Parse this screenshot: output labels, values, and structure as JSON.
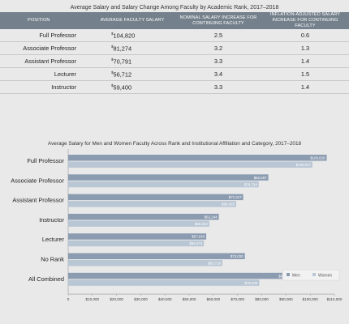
{
  "table": {
    "title": "Average Salary and Salary Change Among Faculty by Academic Rank, 2017–2018",
    "headers": [
      "POSITION",
      "AVERAGE FACULTY SALARY",
      "NOMINAL SALARY INCREASE FOR CONTINUING FACULTY",
      "INFLATION-ADJUSTED SALARY INCREASE FOR CONTINUING FACULTY"
    ],
    "rows": [
      {
        "position": "Full Professor",
        "salary": "104,820",
        "nominal": "2.5",
        "adjusted": "0.6"
      },
      {
        "position": "Associate Professor",
        "salary": "81,274",
        "nominal": "3.2",
        "adjusted": "1.3"
      },
      {
        "position": "Assistant Professor",
        "salary": "70,791",
        "nominal": "3.3",
        "adjusted": "1.4"
      },
      {
        "position": "Lecturer",
        "salary": "56,712",
        "nominal": "3.4",
        "adjusted": "1.5"
      },
      {
        "position": "Instructor",
        "salary": "59,400",
        "nominal": "3.3",
        "adjusted": "1.4"
      }
    ]
  },
  "chart_data": {
    "type": "bar",
    "orientation": "horizontal",
    "title": "Average Salary for Men and Women Faculty Across Rank and Institutional Affiliation and Category, 2017–2018",
    "categories": [
      "Full Professor",
      "Associate Professor",
      "Assistant Professor",
      "Instructor",
      "Lecturer",
      "No Rank",
      "All Combined"
    ],
    "series": [
      {
        "name": "Men",
        "color": "#8b9bb0",
        "values": [
          106820,
          82697,
          72317,
          62244,
          57043,
          73020,
          92930
        ],
        "labels": [
          "$106,820",
          "$82,697",
          "$72,317",
          "$62,244",
          "$57,043",
          "$73,020",
          "$92,930"
        ]
      },
      {
        "name": "Women",
        "color": "#b9c6d4",
        "values": [
          100917,
          78734,
          69425,
          58310,
          56073,
          63718,
          78940
        ],
        "labels": [
          "$100,917",
          "$78,734",
          "$69,425",
          "$58,310",
          "$56,073",
          "$63,718",
          "$78,940"
        ]
      }
    ],
    "xlim": [
      0,
      110000
    ],
    "xticks": [
      0,
      10000,
      20000,
      30000,
      40000,
      50000,
      60000,
      70000,
      80000,
      90000,
      100000,
      110000
    ],
    "xtick_labels": [
      "0",
      "$10,000",
      "$20,000",
      "$30,000",
      "$40,000",
      "$50,000",
      "$60,000",
      "$70,000",
      "$80,000",
      "$90,000",
      "$100,000",
      "$110,000"
    ],
    "legend": "bottom-right",
    "grid": false
  }
}
